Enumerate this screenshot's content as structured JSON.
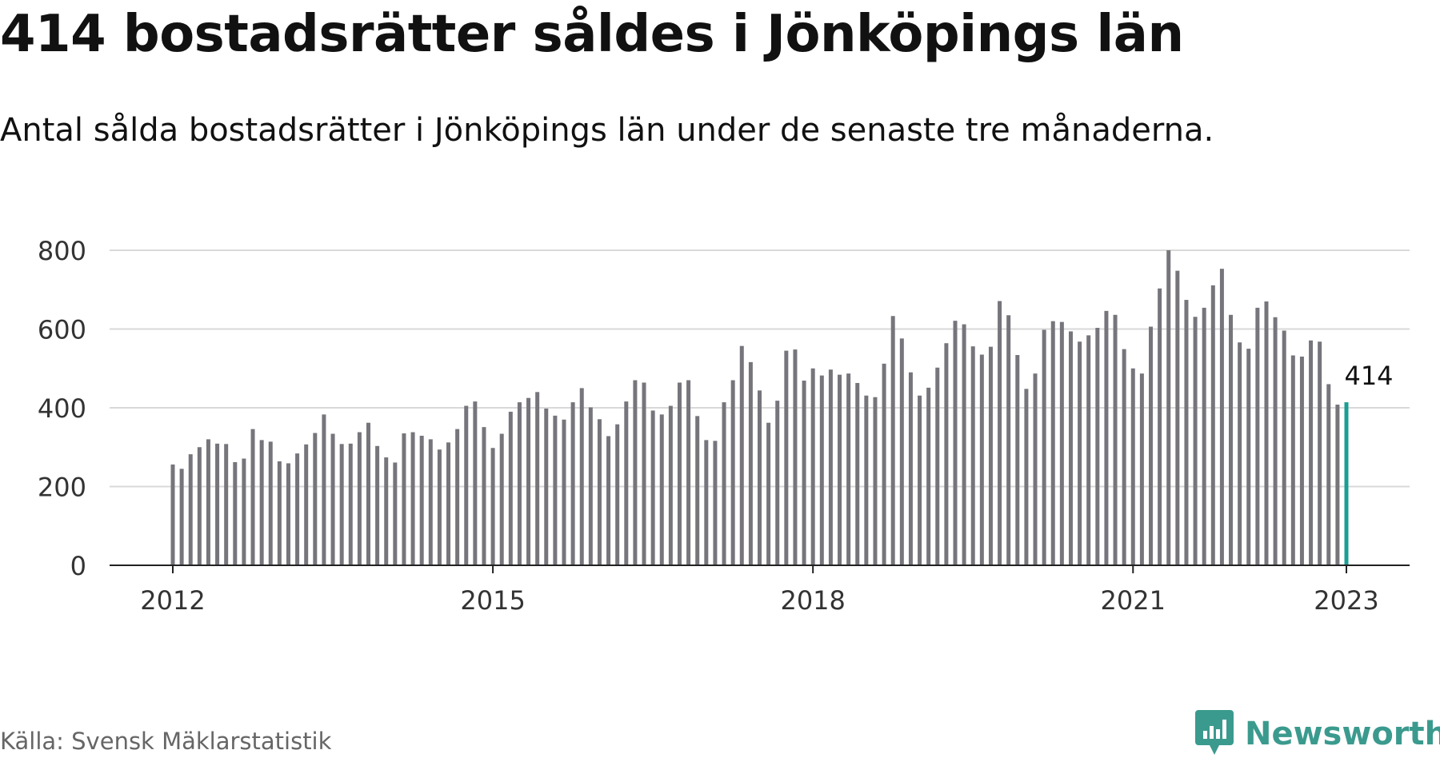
{
  "title": "414 bostadsrätter såldes i Jönköpings län",
  "subtitle": "Antal sålda bostadsrätter i Jönköpings län under de senaste tre månaderna.",
  "source": "Källa: Svensk Mäklarstatistik",
  "brand": {
    "name": "Newsworthy",
    "color": "#3b9a8e"
  },
  "colors": {
    "bar": "#75757b",
    "highlight": "#1a9e93",
    "grid": "#d9d9d9",
    "axis": "#222222"
  },
  "chart_data": {
    "type": "bar",
    "start": "2012-01",
    "ylim": [
      0,
      800
    ],
    "yticks": [
      0,
      200,
      400,
      600,
      800
    ],
    "xticks": [
      "2012",
      "2015",
      "2018",
      "2021",
      "2023"
    ],
    "grid": true,
    "highlight_label": "414",
    "values": [
      256,
      245,
      282,
      300,
      320,
      309,
      308,
      262,
      271,
      346,
      318,
      314,
      264,
      259,
      284,
      307,
      336,
      383,
      334,
      308,
      309,
      338,
      362,
      303,
      274,
      261,
      335,
      338,
      329,
      320,
      294,
      312,
      346,
      405,
      416,
      351,
      298,
      334,
      390,
      414,
      425,
      440,
      398,
      380,
      370,
      414,
      450,
      401,
      371,
      328,
      358,
      416,
      470,
      464,
      393,
      383,
      405,
      464,
      470,
      379,
      318,
      316,
      414,
      470,
      557,
      516,
      444,
      362,
      418,
      545,
      548,
      469,
      500,
      482,
      497,
      484,
      487,
      463,
      431,
      427,
      512,
      633,
      576,
      490,
      431,
      451,
      502,
      564,
      621,
      612,
      556,
      535,
      555,
      671,
      635,
      534,
      448,
      487,
      598,
      620,
      618,
      594,
      568,
      584,
      603,
      646,
      636,
      549,
      500,
      487,
      606,
      703,
      800,
      748,
      674,
      631,
      654,
      711,
      753,
      636,
      566,
      550,
      654,
      670,
      630,
      596,
      533,
      530,
      571,
      568,
      460,
      408,
      414
    ]
  }
}
